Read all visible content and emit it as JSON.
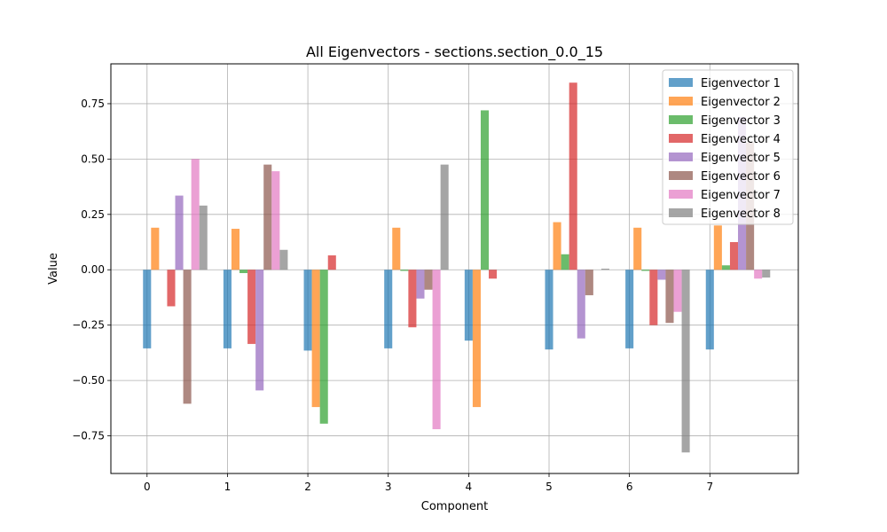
{
  "chart_data": {
    "type": "bar",
    "title": "All Eigenvectors - sections.section_0.0_15",
    "xlabel": "Component",
    "ylabel": "Value",
    "categories": [
      "0",
      "1",
      "2",
      "3",
      "4",
      "5",
      "6",
      "7"
    ],
    "xlim": [
      -0.45,
      8.1
    ],
    "ylim": [
      -0.92,
      0.93
    ],
    "yticks": [
      -0.75,
      -0.5,
      -0.25,
      0.0,
      0.25,
      0.5,
      0.75
    ],
    "ytick_labels": [
      "−0.75",
      "−0.50",
      "−0.25",
      "0.00",
      "0.25",
      "0.50",
      "0.75"
    ],
    "grid": true,
    "legend_position": "top-right",
    "bar_alpha": 0.7,
    "series": [
      {
        "name": "Eigenvector 1",
        "color": "#1f77b4",
        "values": [
          -0.355,
          -0.355,
          -0.365,
          -0.355,
          -0.32,
          -0.36,
          -0.355,
          -0.36
        ]
      },
      {
        "name": "Eigenvector 2",
        "color": "#ff7f0e",
        "values": [
          0.19,
          0.185,
          -0.62,
          0.19,
          -0.62,
          0.215,
          0.19,
          0.2
        ]
      },
      {
        "name": "Eigenvector 3",
        "color": "#2ca02c",
        "values": [
          0.0,
          -0.015,
          -0.695,
          -0.005,
          0.72,
          0.07,
          -0.005,
          0.02
        ]
      },
      {
        "name": "Eigenvector 4",
        "color": "#d62728",
        "values": [
          -0.165,
          -0.335,
          0.065,
          -0.26,
          -0.04,
          0.845,
          -0.25,
          0.125
        ]
      },
      {
        "name": "Eigenvector 5",
        "color": "#9467bd",
        "values": [
          0.335,
          -0.545,
          0.0,
          -0.13,
          0.0,
          -0.31,
          -0.045,
          0.69
        ]
      },
      {
        "name": "Eigenvector 6",
        "color": "#8c564b",
        "values": [
          -0.605,
          0.475,
          0.0,
          -0.09,
          0.0,
          -0.115,
          -0.24,
          0.575
        ]
      },
      {
        "name": "Eigenvector 7",
        "color": "#e377c2",
        "values": [
          0.5,
          0.445,
          0.0,
          -0.72,
          0.0,
          0.0,
          -0.19,
          -0.04
        ]
      },
      {
        "name": "Eigenvector 8",
        "color": "#7f7f7f",
        "values": [
          0.29,
          0.09,
          0.0,
          0.475,
          0.0,
          0.005,
          -0.825,
          -0.035
        ]
      }
    ]
  }
}
